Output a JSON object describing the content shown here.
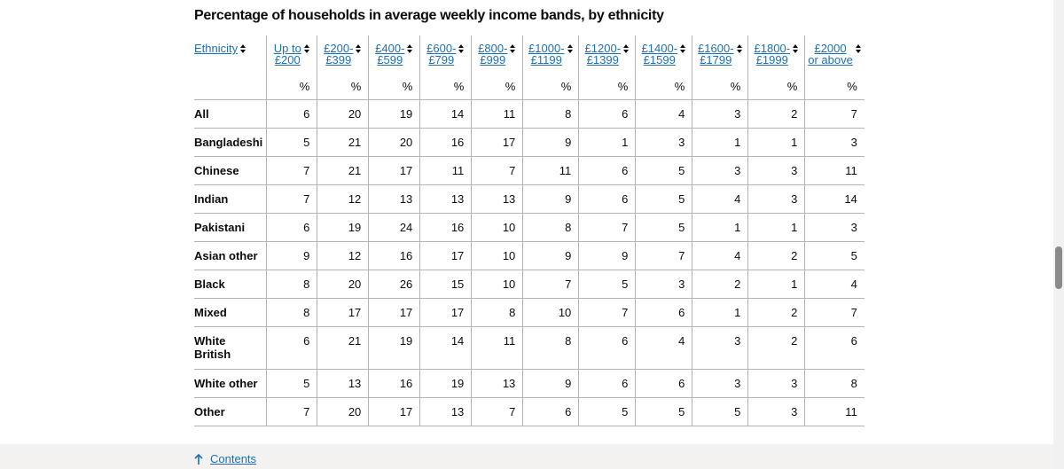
{
  "title": "Percentage of households in average weekly income bands, by ethnicity",
  "table": {
    "ethnicity_header": "Ethnicity",
    "column_headers": [
      {
        "line1": "Up to",
        "line2": "£200"
      },
      {
        "line1": "£200-",
        "line2": "£399"
      },
      {
        "line1": "£400-",
        "line2": "£599"
      },
      {
        "line1": "£600-",
        "line2": "£799"
      },
      {
        "line1": "£800-",
        "line2": "£999"
      },
      {
        "line1": "£1000-",
        "line2": "£1199"
      },
      {
        "line1": "£1200-",
        "line2": "£1399"
      },
      {
        "line1": "£1400-",
        "line2": "£1599"
      },
      {
        "line1": "£1600-",
        "line2": "£1799"
      },
      {
        "line1": "£1800-",
        "line2": "£1999"
      },
      {
        "line1": "£2000",
        "line2": "or above"
      }
    ],
    "unit": "%",
    "rows": [
      {
        "label": "All",
        "values": [
          "6",
          "20",
          "19",
          "14",
          "11",
          "8",
          "6",
          "4",
          "3",
          "2",
          "7"
        ]
      },
      {
        "label": "Bangladeshi",
        "values": [
          "5",
          "21",
          "20",
          "16",
          "17",
          "9",
          "1",
          "3",
          "1",
          "1",
          "3"
        ]
      },
      {
        "label": "Chinese",
        "values": [
          "7",
          "21",
          "17",
          "11",
          "7",
          "11",
          "6",
          "5",
          "3",
          "3",
          "11"
        ]
      },
      {
        "label": "Indian",
        "values": [
          "7",
          "12",
          "13",
          "13",
          "13",
          "9",
          "6",
          "5",
          "4",
          "3",
          "14"
        ]
      },
      {
        "label": "Pakistani",
        "values": [
          "6",
          "19",
          "24",
          "16",
          "10",
          "8",
          "7",
          "5",
          "1",
          "1",
          "3"
        ]
      },
      {
        "label": "Asian other",
        "values": [
          "9",
          "12",
          "16",
          "17",
          "10",
          "9",
          "9",
          "7",
          "4",
          "2",
          "5"
        ]
      },
      {
        "label": "Black",
        "values": [
          "8",
          "20",
          "26",
          "15",
          "10",
          "7",
          "5",
          "3",
          "2",
          "1",
          "4"
        ]
      },
      {
        "label": "Mixed",
        "values": [
          "8",
          "17",
          "17",
          "17",
          "8",
          "10",
          "7",
          "6",
          "1",
          "2",
          "7"
        ]
      },
      {
        "label": "White British",
        "values": [
          "6",
          "21",
          "19",
          "14",
          "11",
          "8",
          "6",
          "4",
          "3",
          "2",
          "6"
        ]
      },
      {
        "label": "White other",
        "values": [
          "5",
          "13",
          "16",
          "19",
          "13",
          "9",
          "6",
          "6",
          "3",
          "3",
          "8"
        ]
      },
      {
        "label": "Other",
        "values": [
          "7",
          "20",
          "17",
          "13",
          "7",
          "6",
          "5",
          "5",
          "5",
          "3",
          "11"
        ]
      }
    ]
  },
  "footer": {
    "contents_label": "Contents"
  },
  "colors": {
    "link": "#1d70b8",
    "text": "#0b0c0c",
    "border": "#b1b4b6",
    "footer_bg": "#f3f2f1"
  }
}
